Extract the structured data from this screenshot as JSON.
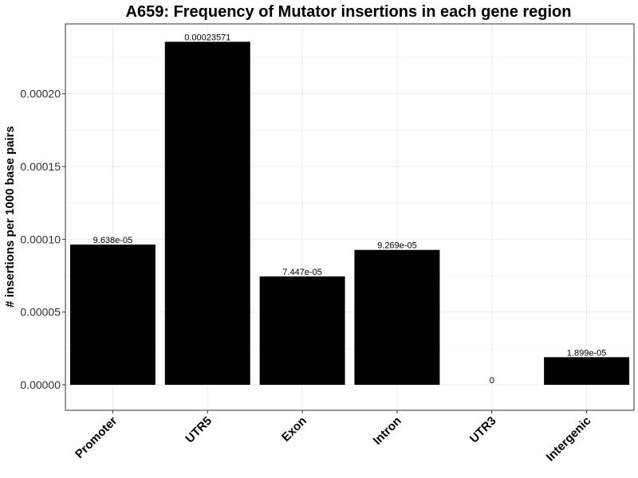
{
  "chart_data": {
    "type": "bar",
    "title": "A659: Frequency of Mutator insertions in each gene region",
    "xlabel": "",
    "ylabel": "# insertions per 1000 base pairs",
    "categories": [
      "Promoter",
      "UTR5",
      "Exon",
      "Intron",
      "UTR3",
      "Intergenic"
    ],
    "values": [
      9.638e-05,
      0.00023571,
      7.447e-05,
      9.269e-05,
      0,
      1.899e-05
    ],
    "data_labels": [
      "9.638e-05",
      "0.00023571",
      "7.447e-05",
      "9.269e-05",
      "0",
      "1.899e-05"
    ],
    "yticks": [
      0,
      5e-05,
      0.0001,
      0.00015,
      0.0002
    ],
    "ytick_labels": [
      "0.00000",
      "0.00005",
      "0.00010",
      "0.00015",
      "0.00020"
    ],
    "ylim": [
      -1.75e-05,
      0.000248
    ],
    "grid": true,
    "bar_color": "#000000",
    "grid_color": "#ebebeb",
    "panel_border_color": "#333333"
  }
}
